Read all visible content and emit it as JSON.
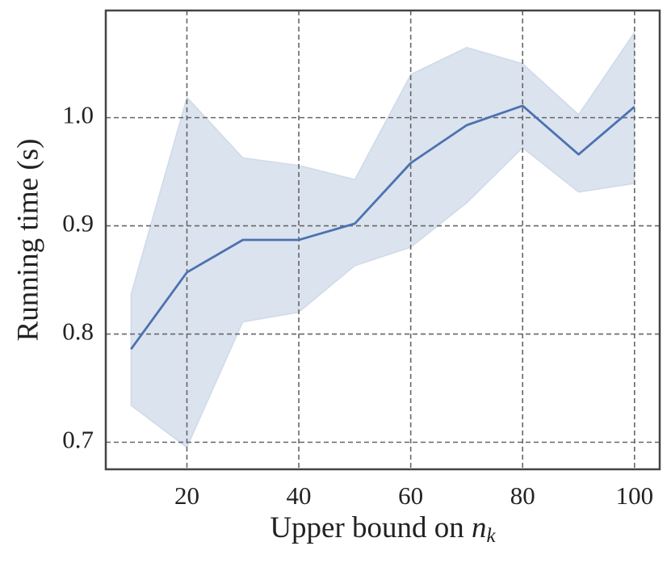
{
  "chart_data": {
    "type": "line",
    "xlabel": [
      "Upper bound on ",
      "n",
      "k"
    ],
    "ylabel": "Running time (s)",
    "x": [
      10,
      20,
      30,
      40,
      50,
      60,
      70,
      80,
      90,
      100
    ],
    "series": [
      {
        "color": "#4c72b0",
        "values": [
          0.786,
          0.857,
          0.887,
          0.887,
          0.902,
          0.958,
          0.993,
          1.011,
          0.966,
          1.01
        ],
        "upper": [
          0.837,
          1.019,
          0.963,
          0.956,
          0.943,
          1.04,
          1.065,
          1.05,
          1.003,
          1.079
        ],
        "lower": [
          0.734,
          0.695,
          0.811,
          0.82,
          0.863,
          0.88,
          0.921,
          0.972,
          0.931,
          0.939
        ]
      }
    ],
    "xlim": [
      5.5,
      104.5
    ],
    "ylim": [
      0.675,
      1.099
    ],
    "xticks": [
      20,
      40,
      60,
      80,
      100
    ],
    "yticks": [
      0.7,
      0.8,
      0.9,
      {
        "value": 1,
        "label": "1.0"
      }
    ],
    "grid": true
  }
}
